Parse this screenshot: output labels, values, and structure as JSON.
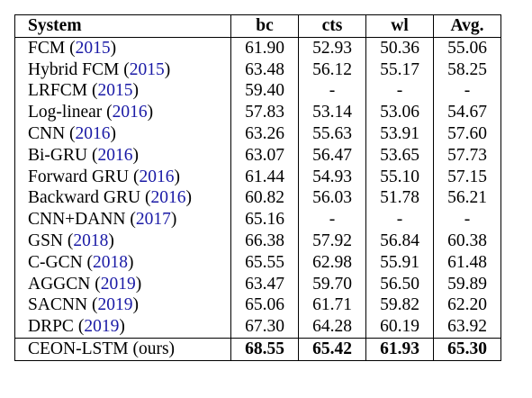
{
  "table": {
    "headers": [
      "System",
      "bc",
      "cts",
      "wl",
      "Avg."
    ],
    "rows": [
      {
        "system": "FCM",
        "year": "2015",
        "bc": "61.90",
        "cts": "52.93",
        "wl": "50.36",
        "avg": "55.06"
      },
      {
        "system": "Hybrid FCM",
        "year": "2015",
        "bc": "63.48",
        "cts": "56.12",
        "wl": "55.17",
        "avg": "58.25"
      },
      {
        "system": "LRFCM",
        "year": "2015",
        "bc": "59.40",
        "cts": "-",
        "wl": "-",
        "avg": "-"
      },
      {
        "system": "Log-linear",
        "year": "2016",
        "bc": "57.83",
        "cts": "53.14",
        "wl": "53.06",
        "avg": "54.67"
      },
      {
        "system": "CNN",
        "year": "2016",
        "bc": "63.26",
        "cts": "55.63",
        "wl": "53.91",
        "avg": "57.60"
      },
      {
        "system": "Bi-GRU",
        "year": "2016",
        "bc": "63.07",
        "cts": "56.47",
        "wl": "53.65",
        "avg": "57.73"
      },
      {
        "system": "Forward GRU",
        "year": "2016",
        "bc": "61.44",
        "cts": "54.93",
        "wl": "55.10",
        "avg": "57.15"
      },
      {
        "system": "Backward GRU",
        "year": "2016",
        "bc": "60.82",
        "cts": "56.03",
        "wl": "51.78",
        "avg": "56.21"
      },
      {
        "system": "CNN+DANN",
        "year": "2017",
        "bc": "65.16",
        "cts": "-",
        "wl": "-",
        "avg": "-"
      },
      {
        "system": "GSN",
        "year": "2018",
        "bc": "66.38",
        "cts": "57.92",
        "wl": "56.84",
        "avg": "60.38"
      },
      {
        "system": "C-GCN",
        "year": "2018",
        "bc": "65.55",
        "cts": "62.98",
        "wl": "55.91",
        "avg": "61.48"
      },
      {
        "system": "AGGCN",
        "year": "2019",
        "bc": "63.47",
        "cts": "59.70",
        "wl": "56.50",
        "avg": "59.89"
      },
      {
        "system": "SACNN",
        "year": "2019",
        "bc": "65.06",
        "cts": "61.71",
        "wl": "59.82",
        "avg": "62.20"
      },
      {
        "system": "DRPC",
        "year": "2019",
        "bc": "67.30",
        "cts": "64.28",
        "wl": "60.19",
        "avg": "63.92"
      }
    ],
    "ours": {
      "system": "CEON-LSTM (ours)",
      "bc": "68.55",
      "cts": "65.42",
      "wl": "61.93",
      "avg": "65.30"
    }
  },
  "colors": {
    "citation": "#1a1aa6",
    "text": "#000000",
    "background": "#ffffff"
  }
}
